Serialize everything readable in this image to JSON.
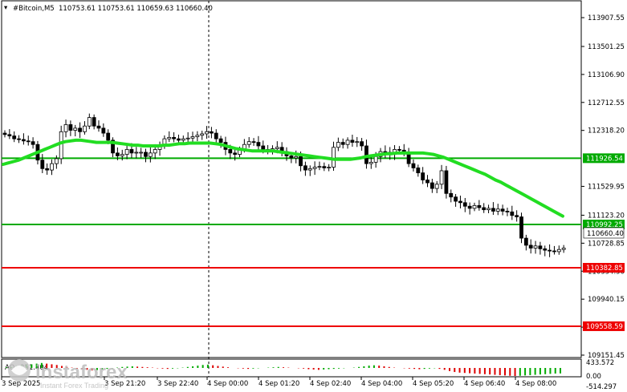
{
  "header": {
    "symbol": "#Bitcoin,M5",
    "ohlc": "110753.61 110753.61 110659.63 110660.40"
  },
  "price_axis": {
    "ticks": [
      "113907.55",
      "113501.25",
      "113106.90",
      "112712.55",
      "112318.20",
      "111529.95",
      "111123.20",
      "110728.85",
      "110334.50",
      "109940.15",
      "109545.80",
      "109151.45"
    ],
    "current_price": "110660.40"
  },
  "levels": [
    {
      "label": "111926.54",
      "color": "#00aa00",
      "kind": "support-resistance"
    },
    {
      "label": "110992.25",
      "color": "#00aa00",
      "kind": "support-resistance"
    },
    {
      "label": "110382.85",
      "color": "#ee0000",
      "kind": "target"
    },
    {
      "label": "109558.59",
      "color": "#ee0000",
      "kind": "target"
    }
  ],
  "indicator": {
    "name": "AO",
    "value": "-351.404",
    "ticks": [
      "433.572",
      "0.00",
      "-514.297"
    ]
  },
  "time_axis": [
    "3 Sep 2025",
    "3 Sep 21:20",
    "3 Sep 22:40",
    "4 Sep 00:00",
    "4 Sep 01:20",
    "4 Sep 02:40",
    "4 Sep 04:00",
    "4 Sep 05:20",
    "4 Sep 06:40",
    "4 Sep 08:00"
  ],
  "watermark": {
    "brand": "instaforex",
    "tagline": "Instant Forex Trading"
  },
  "chart_data": {
    "type": "candlestick",
    "title": "#Bitcoin,M5",
    "ylim": [
      109151.45,
      114100
    ],
    "ma_color": "#22dd22",
    "candle_color": "#000000",
    "closes": [
      112260,
      112240,
      112200,
      112190,
      112170,
      112160,
      112120,
      111900,
      111780,
      111760,
      111850,
      111920,
      112300,
      112400,
      112320,
      112350,
      112300,
      112380,
      112500,
      112380,
      112350,
      112280,
      112180,
      112000,
      111960,
      111980,
      112050,
      112000,
      112010,
      112010,
      111950,
      112000,
      112050,
      112100,
      112200,
      112220,
      112200,
      112180,
      112200,
      112210,
      112230,
      112250,
      112270,
      112300,
      112280,
      112200,
      112150,
      112050,
      112000,
      111980,
      112050,
      112120,
      112160,
      112150,
      112100,
      112050,
      112040,
      112060,
      112080,
      112020,
      111960,
      111930,
      111950,
      111820,
      111760,
      111780,
      111800,
      111810,
      111790,
      111800,
      112080,
      112150,
      112120,
      112180,
      112150,
      112160,
      112100,
      111850,
      111870,
      111950,
      112020,
      112010,
      111990,
      112050,
      112040,
      112000,
      111850,
      111790,
      111720,
      111620,
      111580,
      111500,
      111560,
      111750,
      111430,
      111380,
      111320,
      111300,
      111250,
      111220,
      111260,
      111230,
      111200,
      111220,
      111180,
      111210,
      111180,
      111170,
      111120,
      111100,
      110800,
      110700,
      110660,
      110690,
      110650,
      110630,
      110620,
      110610,
      110640,
      110660
    ],
    "ma": [
      111840,
      111860,
      111880,
      111900,
      111930,
      111960,
      111990,
      112020,
      112050,
      112080,
      112110,
      112140,
      112160,
      112170,
      112180,
      112180,
      112170,
      112160,
      112150,
      112150,
      112150,
      112150,
      112140,
      112130,
      112120,
      112110,
      112110,
      112100,
      112100,
      112100,
      112100,
      112110,
      112110,
      112120,
      112130,
      112130,
      112140,
      112140,
      112140,
      112140,
      112140,
      112130,
      112120,
      112100,
      112080,
      112060,
      112050,
      112040,
      112030,
      112030,
      112030,
      112030,
      112030,
      112020,
      112010,
      112000,
      111990,
      111980,
      111970,
      111960,
      111950,
      111940,
      111930,
      111920,
      111910,
      111910,
      111910,
      111910,
      111920,
      111930,
      111950,
      111960,
      111970,
      111980,
      111990,
      111990,
      112000,
      112000,
      112000,
      112000,
      112000,
      112000,
      111990,
      111980,
      111960,
      111940,
      111910,
      111880,
      111850,
      111820,
      111790,
      111760,
      111730,
      111700,
      111660,
      111620,
      111590,
      111550,
      111510,
      111470,
      111430,
      111390,
      111350,
      111310,
      111270,
      111230,
      111190,
      111150,
      111110
    ],
    "ao": [
      40,
      60,
      120,
      160,
      200,
      220,
      260,
      300,
      260,
      220,
      180,
      120,
      60,
      20,
      -40,
      -80,
      -120,
      -160,
      -140,
      -100,
      -60,
      -20,
      20,
      60,
      80,
      100,
      80,
      60,
      40,
      20,
      -20,
      -40,
      -60,
      -40,
      -20,
      20,
      60,
      100,
      140,
      180,
      200,
      160,
      120,
      80,
      40,
      0,
      -20,
      -40,
      -60,
      -40,
      -20,
      0,
      20,
      40,
      60,
      40,
      20,
      0,
      -20,
      -40,
      -80,
      -100,
      -120,
      -100,
      -80,
      -60,
      -40,
      -20,
      0,
      20,
      60,
      100,
      140,
      160,
      140,
      100,
      60,
      20,
      0,
      -20,
      -40,
      -60,
      -80,
      -60,
      -40,
      -20,
      -60,
      -120,
      -200,
      -260,
      -300,
      -320,
      -340,
      -360,
      -380,
      -400,
      -420,
      -440,
      -460,
      -480,
      -500,
      -514,
      -500,
      -480,
      -460,
      -440,
      -420,
      -400,
      -380,
      -360,
      -351
    ]
  }
}
